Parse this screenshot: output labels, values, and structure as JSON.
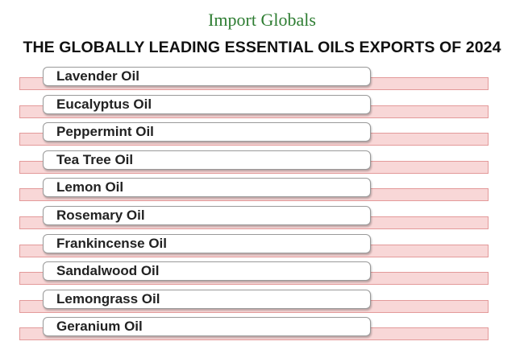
{
  "brand": "Import Globals",
  "title": "THE GLOBALLY LEADING ESSENTIAL OILS EXPORTS OF 2024",
  "items": [
    "Lavender Oil",
    "Eucalyptus Oil",
    "Peppermint Oil",
    "Tea Tree Oil",
    "Lemon Oil",
    "Rosemary Oil",
    "Frankincense Oil",
    "Sandalwood Oil",
    "Lemongrass Oil",
    "Geranium Oil"
  ]
}
